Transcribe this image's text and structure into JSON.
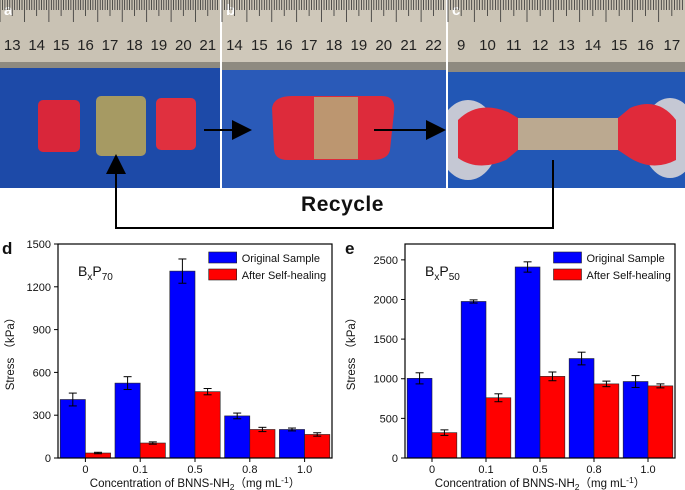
{
  "photos": {
    "panels": [
      {
        "letter": "a",
        "ruler_ticks": [
          "13",
          "14",
          "15",
          "16",
          "17",
          "18",
          "19",
          "20",
          "21"
        ]
      },
      {
        "letter": "b",
        "ruler_ticks": [
          "14",
          "15",
          "16",
          "17",
          "18",
          "19",
          "20",
          "21",
          "22"
        ]
      },
      {
        "letter": "c",
        "ruler_ticks": [
          "9",
          "10",
          "11",
          "12",
          "13",
          "14",
          "15",
          "16",
          "17"
        ]
      }
    ],
    "recycle_label": "Recycle",
    "colors": {
      "blue_bg": "#1f4fb0",
      "gel_red": "#e02a3a",
      "ruler": "#c9c2b4"
    }
  },
  "chart_data": [
    {
      "type": "bar",
      "panel": "d",
      "annotation": "BxP70",
      "annotation_base": "B",
      "annotation_sub1": "x",
      "annotation_mid": "P",
      "annotation_sub2": "70",
      "categories": [
        "0",
        "0.1",
        "0.5",
        "0.8",
        "1.0"
      ],
      "series": [
        {
          "name": "Original Sample",
          "color": "#0000ff",
          "values": [
            410,
            525,
            1310,
            295,
            200
          ],
          "errors": [
            45,
            45,
            85,
            20,
            10
          ]
        },
        {
          "name": "After Self-healing",
          "color": "#ff0000",
          "values": [
            35,
            105,
            465,
            200,
            165
          ],
          "errors": [
            5,
            8,
            22,
            15,
            12
          ]
        }
      ],
      "xlabel": "Concentration of BNNS-NH",
      "xlabel_sub": "2",
      "xlabel_unit": "（mg mL",
      "xlabel_sup": "-1",
      "xlabel_end": "）",
      "ylabel": "Stress （kPa）",
      "ylim": [
        0,
        1500
      ],
      "yticks": [
        "0",
        "300",
        "600",
        "900",
        "1200",
        "1500"
      ],
      "legend": "top-right"
    },
    {
      "type": "bar",
      "panel": "e",
      "annotation": "BxP50",
      "annotation_base": "B",
      "annotation_sub1": "x",
      "annotation_mid": "P",
      "annotation_sub2": "50",
      "categories": [
        "0",
        "0.1",
        "0.5",
        "0.8",
        "1.0"
      ],
      "series": [
        {
          "name": "Original Sample",
          "color": "#0000ff",
          "values": [
            1005,
            1975,
            2410,
            1255,
            965
          ],
          "errors": [
            70,
            20,
            65,
            80,
            75
          ]
        },
        {
          "name": "After Self-healing",
          "color": "#ff0000",
          "values": [
            320,
            760,
            1030,
            935,
            910
          ],
          "errors": [
            35,
            50,
            55,
            35,
            25
          ]
        }
      ],
      "xlabel": "Concentration of BNNS-NH",
      "xlabel_sub": "2",
      "xlabel_unit": "（mg mL",
      "xlabel_sup": "-1",
      "xlabel_end": "）",
      "ylabel": "Stress （kPa）",
      "ylim": [
        0,
        2700
      ],
      "yticks": [
        "0",
        "500",
        "1000",
        "1500",
        "2000",
        "2500"
      ],
      "legend": "top-right"
    }
  ]
}
